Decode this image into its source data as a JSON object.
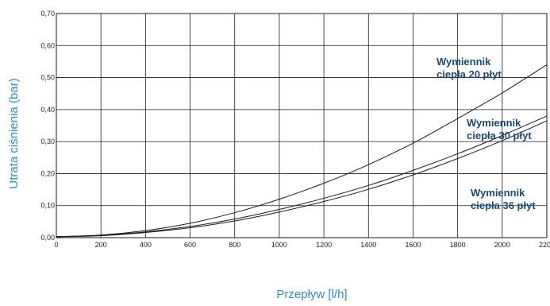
{
  "chart_data": {
    "type": "line",
    "xlabel": "Przepływ [l/h]",
    "ylabel": "Utrata ciśnienia (bar)",
    "xlim": [
      0,
      2200
    ],
    "ylim": [
      0,
      0.7
    ],
    "x_ticks": [
      "0",
      "200",
      "400",
      "600",
      "800",
      "1000",
      "1200",
      "1400",
      "1600",
      "1800",
      "2000",
      "2200"
    ],
    "y_ticks": [
      "0,00",
      "0,10",
      "0,20",
      "0,30",
      "0,40",
      "0,50",
      "0,60",
      "0,70"
    ],
    "grid": true,
    "legend": "inline-labels",
    "series": [
      {
        "name": "Wymiennik ciepła 20 płyt",
        "label_lines": [
          "Wymiennik",
          "ciepła 20 płyt"
        ],
        "x": [
          0,
          200,
          400,
          600,
          800,
          1000,
          1200,
          1400,
          1600,
          1800,
          2000,
          2200
        ],
        "y": [
          0.003,
          0.008,
          0.022,
          0.045,
          0.078,
          0.12,
          0.17,
          0.228,
          0.295,
          0.372,
          0.452,
          0.54
        ]
      },
      {
        "name": "Wymiennik ciepła 30 płyt",
        "label_lines": [
          "Wymiennik",
          "ciepła 30 płyt"
        ],
        "x": [
          0,
          200,
          400,
          600,
          800,
          1000,
          1200,
          1400,
          1600,
          1800,
          2000,
          2200
        ],
        "y": [
          0.003,
          0.007,
          0.018,
          0.035,
          0.058,
          0.088,
          0.123,
          0.163,
          0.21,
          0.262,
          0.319,
          0.38
        ]
      },
      {
        "name": "Wymiennik ciepła 36 płyt",
        "label_lines": [
          "Wymiennik",
          "ciepła 36 płyt"
        ],
        "x": [
          0,
          200,
          400,
          600,
          800,
          1000,
          1200,
          1400,
          1600,
          1800,
          2000,
          2200
        ],
        "y": [
          0.003,
          0.006,
          0.016,
          0.031,
          0.052,
          0.08,
          0.113,
          0.151,
          0.196,
          0.247,
          0.303,
          0.365
        ]
      }
    ],
    "colors": {
      "series_line": "#1a1a1a",
      "series_label": "#1b4a78",
      "axis_title": "#2b8fc4",
      "grid": "#1a1a1a"
    }
  }
}
